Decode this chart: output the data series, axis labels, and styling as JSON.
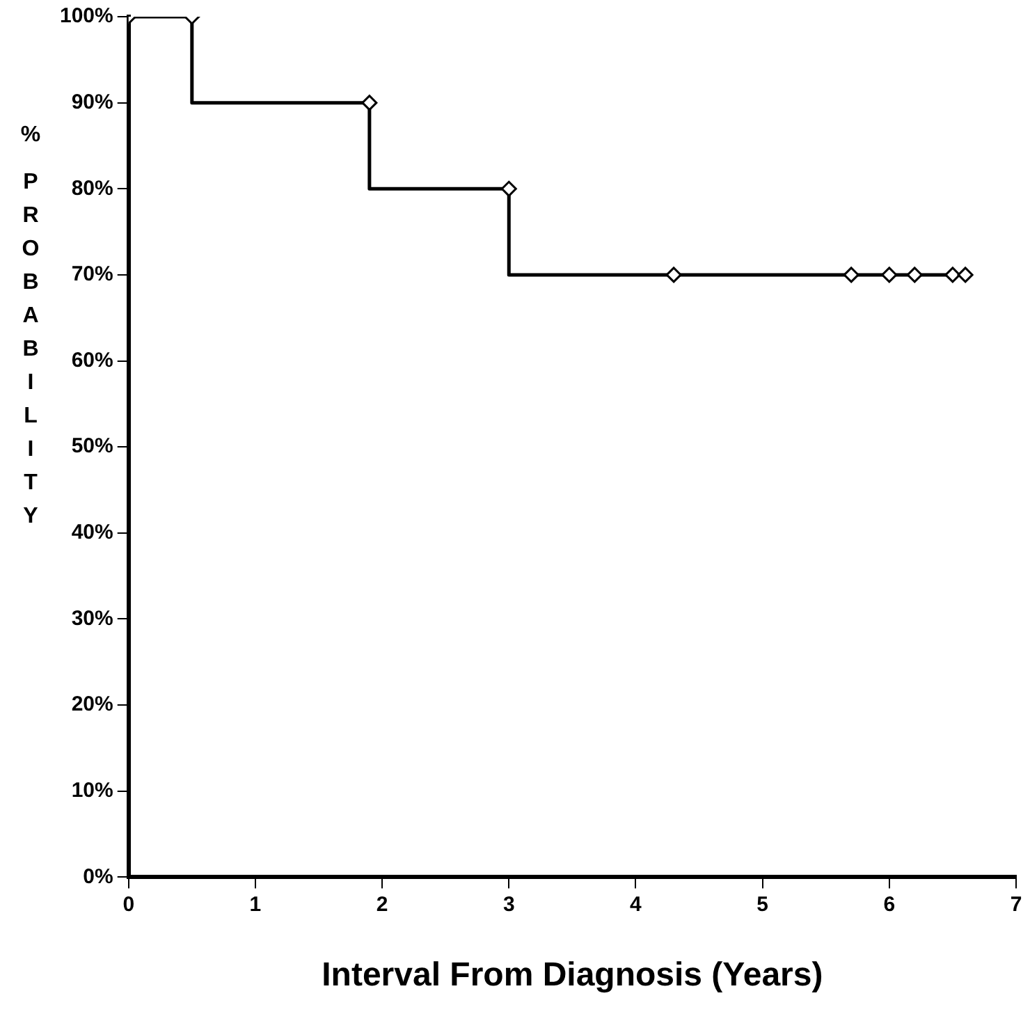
{
  "chart_data": {
    "type": "step",
    "xlabel": "Interval From Diagnosis (Years)",
    "ylabel": "% PROBABILITY",
    "x": [
      0,
      0.5,
      1.9,
      3.0,
      4.3,
      5.7,
      6.0,
      6.2,
      6.5,
      6.6
    ],
    "series": [
      {
        "color": "#000000",
        "values": [
          100,
          100,
          90,
          80,
          70,
          70,
          70,
          70,
          70,
          70
        ]
      }
    ],
    "xlim": [
      0,
      7
    ],
    "xticks": [
      0,
      1,
      2,
      3,
      4,
      5,
      6,
      7
    ],
    "ylim": [
      0,
      100
    ],
    "yticks": [
      {
        "value": 0,
        "label": "0%"
      },
      {
        "value": 10,
        "label": "10%"
      },
      {
        "value": 20,
        "label": "20%"
      },
      {
        "value": 30,
        "label": "30%"
      },
      {
        "value": 40,
        "label": "40%"
      },
      {
        "value": 50,
        "label": "50%"
      },
      {
        "value": 60,
        "label": "60%"
      },
      {
        "value": 70,
        "label": "70%"
      },
      {
        "value": 80,
        "label": "80%"
      },
      {
        "value": 90,
        "label": "90%"
      },
      {
        "value": 100,
        "label": "100%"
      }
    ],
    "grid": false,
    "legend": false,
    "marker": "diamond"
  }
}
